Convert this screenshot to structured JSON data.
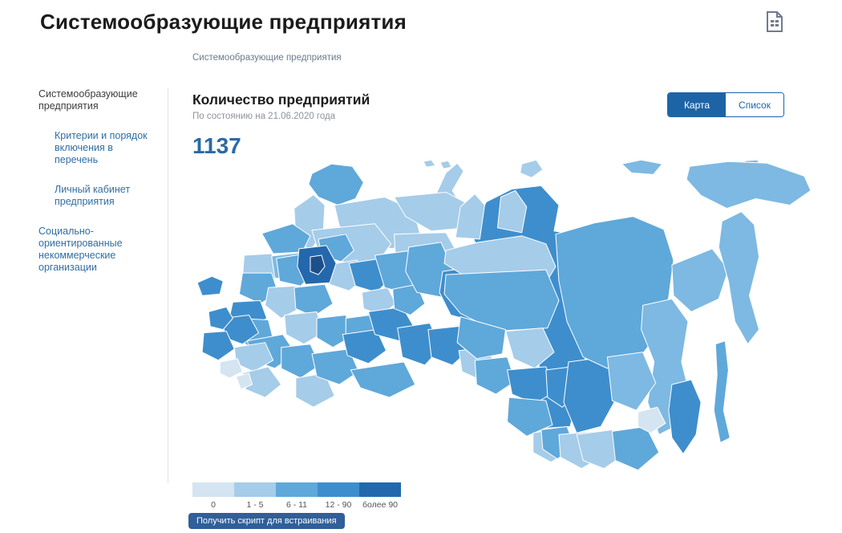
{
  "page": {
    "title": "Системообразующие предприятия",
    "breadcrumb": "Системообразующие предприятия"
  },
  "sidebar": {
    "items": [
      {
        "label": "Системообразующие предприятия",
        "active": true,
        "indent": false
      },
      {
        "label": "Критерии и порядок включения в перечень",
        "active": false,
        "indent": true
      },
      {
        "label": "Личный кабинет предприятия",
        "active": false,
        "indent": true
      },
      {
        "label": "Социально-ориентированные некоммерческие организации",
        "active": false,
        "indent": false
      }
    ]
  },
  "main": {
    "heading": "Количество предприятий",
    "as_of": "По состоянию на 21.06.2020 года",
    "total": "1137",
    "toggle": {
      "map_label": "Карта",
      "list_label": "Список",
      "active": "Карта"
    },
    "embed_button": "Получить скрипт для встраивания"
  },
  "legend": {
    "items": [
      {
        "label": "0",
        "color": "#d5e4f1"
      },
      {
        "label": "1 - 5",
        "color": "#a5cce9"
      },
      {
        "label": "6 - 11",
        "color": "#5fa8da"
      },
      {
        "label": "12 - 90",
        "color": "#3e8ecd"
      },
      {
        "label": "более 90",
        "color": "#2368ac"
      }
    ]
  },
  "colors": {
    "accent": "#1d64a7",
    "link": "#2f6ea5",
    "count": "#2a6aa5",
    "button": "#305f99",
    "icon": "#6f7a8e",
    "sep": "#e3e3e3",
    "text": "#1b1b1b",
    "muted": "#8d929b",
    "crumb": "#6c7a8d"
  },
  "map": {
    "stroke": "#ffffff",
    "palette": [
      "#d5e4f1",
      "#a5cce9",
      "#7db9e2",
      "#5fa8da",
      "#3e8ecd",
      "#2368ac",
      "#1d4f8a"
    ],
    "regions": [
      {
        "p": "288,2 298,0 303,7 292,9",
        "f": 1
      },
      {
        "p": "309,3 319,1 323,9 313,11",
        "f": 1
      },
      {
        "p": "304,42 316,16 330,4 338,14 324,38 334,54 321,62 307,53",
        "f": 1
      },
      {
        "p": "410,5 428,0 436,12 422,22 408,16",
        "f": 1
      },
      {
        "p": "534,5 558,0 584,5 573,18 546,16",
        "f": 2
      },
      {
        "p": "686,1 702,0 706,8 692,12",
        "f": 2
      },
      {
        "p": "150,17 174,5 200,8 214,28 204,48 182,56 158,46 146,30",
        "f": 3
      },
      {
        "p": "128,60 152,43 166,56 164,90 148,112 130,96",
        "f": 1
      },
      {
        "p": "178,56 240,46 276,62 284,92 250,110 212,104 184,82",
        "f": 1
      },
      {
        "p": "252,46 316,40 350,58 342,84 298,88 266,70",
        "f": 1
      },
      {
        "p": "252,92 316,90 334,122 324,158 282,162 254,130",
        "f": 1
      },
      {
        "p": "150,87 228,79 248,104 232,126 194,128 158,114",
        "f": 1
      },
      {
        "p": "88,91 126,79 148,94 138,114 102,116",
        "f": 3
      },
      {
        "p": "66,118 100,116 112,140 90,158 64,146",
        "f": 1
      },
      {
        "p": "100,119 134,115 144,134 126,150 104,146",
        "f": 2
      },
      {
        "p": "106,122 142,116 154,138 136,156 110,150",
        "f": 3
      },
      {
        "p": "158,98 192,92 202,112 186,126 162,118",
        "f": 3
      },
      {
        "p": "168,130 206,124 216,146 196,162 172,154",
        "f": 1
      },
      {
        "p": "134,110 168,106 180,128 172,152 142,154 132,132",
        "f": 5
      },
      {
        "p": "148,120 162,118 166,132 158,142 148,138",
        "f": 6
      },
      {
        "p": "196,128 236,122 248,146 230,164 204,156",
        "f": 4
      },
      {
        "p": "212,164 244,158 254,178 236,192 214,184",
        "f": 1
      },
      {
        "p": "228,118 274,112 288,142 270,166 240,158",
        "f": 3
      },
      {
        "p": "64,140 100,140 108,164 86,178 60,166",
        "f": 3
      },
      {
        "p": "52,176 86,174 94,196 72,210 48,194",
        "f": 4
      },
      {
        "p": "96,158 130,156 138,182 112,196 92,180",
        "f": 1
      },
      {
        "p": "128,158 166,154 176,178 152,194 130,184",
        "f": 3
      },
      {
        "p": "56,196 96,198 102,222 76,234 52,216",
        "f": 3
      },
      {
        "p": "70,224 114,216 130,240 104,258 76,248",
        "f": 3
      },
      {
        "p": "116,192 156,188 164,214 140,228 118,216",
        "f": 1
      },
      {
        "p": "156,196 192,192 200,218 176,232 156,220",
        "f": 3
      },
      {
        "p": "192,196 222,192 230,214 210,226 192,216",
        "f": 3
      },
      {
        "p": "40,196 72,192 84,214 64,228 42,220",
        "f": 4
      },
      {
        "p": "16,214 44,212 54,234 34,248 14,238",
        "f": 4
      },
      {
        "p": "22,188 44,182 52,196 40,210 24,206",
        "f": 4
      },
      {
        "p": "54,232 92,226 102,248 78,262 56,252",
        "f": 1
      },
      {
        "p": "36,250 58,246 64,262 48,270 36,264",
        "f": 0
      },
      {
        "p": "64,264 96,256 112,278 92,294 68,284",
        "f": 1
      },
      {
        "p": "56,268 72,264 76,278 62,284",
        "f": 0
      },
      {
        "p": "112,232 148,228 160,254 136,270 112,258",
        "f": 3
      },
      {
        "p": "130,270 166,264 178,292 152,306 130,294",
        "f": 1
      },
      {
        "p": "150,240 196,234 208,262 184,278 156,268",
        "f": 3
      },
      {
        "p": "188,216 230,210 242,236 220,252 194,242",
        "f": 4
      },
      {
        "p": "220,188 262,182 276,206 258,224 228,216",
        "f": 4
      },
      {
        "p": "250,160 280,154 290,178 272,192 252,184",
        "f": 3
      },
      {
        "p": "198,260 264,250 278,278 246,294 210,282",
        "f": 3
      },
      {
        "p": "256,208 296,202 310,232 290,254 262,244",
        "f": 4
      },
      {
        "p": "270,108 310,102 326,138 312,170 280,164 266,138",
        "f": 3
      },
      {
        "p": "312,138 352,132 368,168 352,200 322,192 308,164",
        "f": 4
      },
      {
        "p": "294,210 332,206 344,236 324,254 298,244",
        "f": 4
      },
      {
        "p": "332,236 368,232 378,258 358,272 336,262",
        "f": 1
      },
      {
        "p": "348,90 366,52 398,36 434,32 456,56 450,88 472,92 490,126 484,180 492,230 480,285 470,330 440,332 428,290 434,230 428,180 434,130 420,106 378,110 352,102",
        "f": 4
      },
      {
        "p": "328,96 334,58 352,42 364,56 358,98",
        "f": 1
      },
      {
        "p": "380,84 384,46 402,38 416,58 410,90",
        "f": 1
      },
      {
        "p": "316,112 356,102 410,94 440,104 452,132 440,152 396,156 340,144 314,128",
        "f": 1
      },
      {
        "p": "316,142 440,136 456,174 442,208 378,212 334,190 314,166",
        "f": 3
      },
      {
        "p": "334,194 390,210 386,240 354,246 330,226",
        "f": 3
      },
      {
        "p": "390,212 436,208 450,238 426,258 400,246",
        "f": 1
      },
      {
        "p": "352,248 392,244 402,274 378,290 354,278",
        "f": 3
      },
      {
        "p": "392,260 440,256 452,286 426,302 398,290",
        "f": 4
      },
      {
        "p": "440,260 472,256 482,290 460,306 442,294",
        "f": 4
      },
      {
        "p": "394,294 440,298 448,328 416,342 392,324",
        "f": 3
      },
      {
        "p": "424,338 458,332 470,360 446,374 424,362",
        "f": 1
      },
      {
        "p": "434,334 466,330 476,356 454,370 436,358",
        "f": 3
      },
      {
        "p": "456,340 500,336 512,366 484,382 458,368",
        "f": 1
      },
      {
        "p": "468,250 514,244 530,290 508,330 478,338 462,300",
        "f": 4
      },
      {
        "p": "478,340 522,334 538,364 512,382 486,372",
        "f": 1
      },
      {
        "p": "522,336 564,330 580,362 554,384 526,372",
        "f": 3
      },
      {
        "p": "452,92 500,78 548,70 586,86 598,124 592,170 578,216 552,250 516,258 486,244 466,200 456,150",
        "f": 3
      },
      {
        "p": "596,130 646,110 666,136 654,172 620,188 598,168",
        "f": 2
      },
      {
        "p": "618,8 666,2 714,4 760,20 768,38 742,56 700,48 664,60 632,44 614,24",
        "f": 2
      },
      {
        "p": "658,76 682,64 698,80 704,120 692,168 704,210 690,228 674,200 666,150 654,108",
        "f": 2
      },
      {
        "p": "560,180 596,172 616,200 608,250 618,290 600,330 580,340 566,300 574,250 558,210",
        "f": 2
      },
      {
        "p": "516,244 560,238 576,276 552,310 522,298",
        "f": 2
      },
      {
        "p": "554,312 578,306 588,326 570,338 554,330",
        "f": 0
      },
      {
        "p": "596,278 620,272 632,300 626,340 610,364 596,344 592,310",
        "f": 4
      },
      {
        "p": "650,228 662,224 666,260 660,310 668,344 656,350 648,310 652,266",
        "f": 3
      },
      {
        "p": "8,152 26,144 40,150 36,166 14,168",
        "f": 4
      }
    ]
  }
}
